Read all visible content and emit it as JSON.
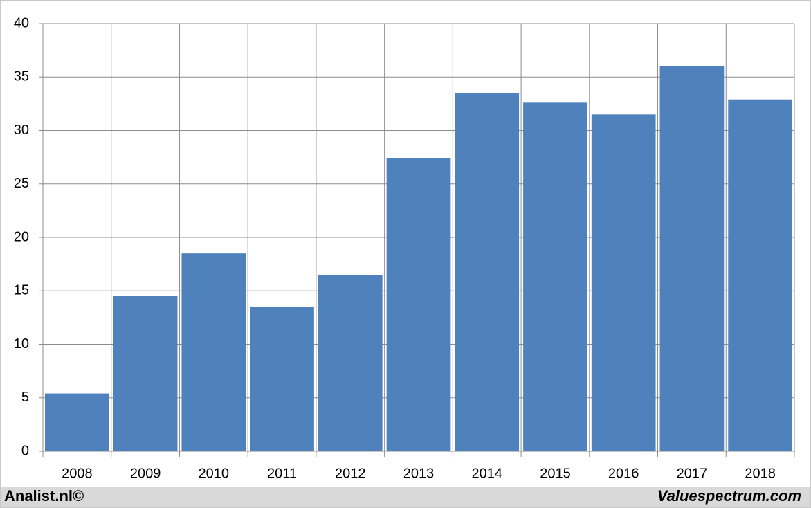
{
  "chart_data": {
    "type": "bar",
    "categories": [
      "2008",
      "2009",
      "2010",
      "2011",
      "2012",
      "2013",
      "2014",
      "2015",
      "2016",
      "2017",
      "2018"
    ],
    "values": [
      5.4,
      14.5,
      18.5,
      13.5,
      16.5,
      27.4,
      33.5,
      32.6,
      31.5,
      36.0,
      32.9
    ],
    "color": "#4f81bd",
    "ylim": [
      0,
      40
    ],
    "yticks": [
      0,
      5,
      10,
      15,
      20,
      25,
      30,
      35,
      40
    ],
    "grid": true,
    "credits": [
      "Analist.nl©",
      "Valuespectrum.com"
    ]
  }
}
